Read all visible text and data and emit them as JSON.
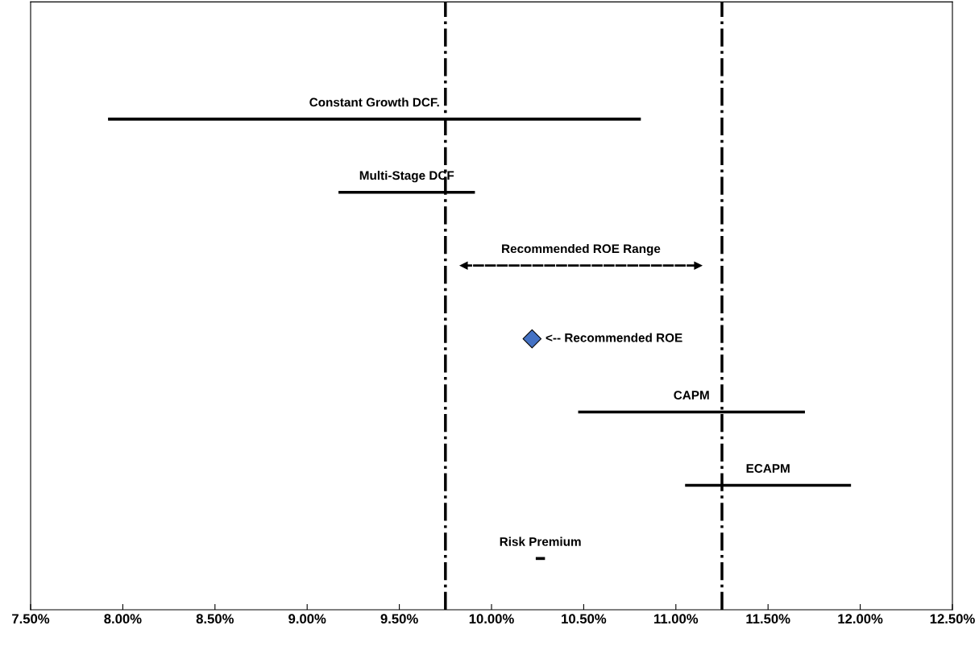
{
  "chart_data": {
    "type": "bar",
    "orientation": "horizontal",
    "tick_labels": "x",
    "categories": [
      "Constant Growth DCF.",
      "Multi-Stage DCF",
      "Recommended ROE Range",
      "<-- Recommended ROE",
      "CAPM",
      "ECAPM",
      "Risk Premium"
    ],
    "series": [
      {
        "color": "#000000",
        "base": [
          7.92,
          9.17,
          null,
          null,
          10.47,
          11.05,
          10.24
        ],
        "values": [
          2.89,
          0.74,
          null,
          null,
          1.23,
          0.9,
          0.05
        ]
      },
      {
        "color": "#000000",
        "line_style": "dashed",
        "base": [
          null,
          null,
          9.85,
          null,
          null,
          null,
          null
        ],
        "values": [
          null,
          null,
          1.27,
          null,
          null,
          null,
          null
        ]
      },
      {
        "type": "scatter",
        "color": "#4472c4",
        "marker": "diamond",
        "values": [
          null,
          null,
          null,
          10.22,
          null,
          null,
          null
        ]
      }
    ],
    "xlim": [
      7.5,
      12.5
    ],
    "xticks": [
      {
        "value": 7.5,
        "label": "7.50%"
      },
      {
        "value": 8.0,
        "label": "8.00%"
      },
      {
        "value": 8.5,
        "label": "8.50%"
      },
      {
        "value": 9.0,
        "label": "9.00%"
      },
      {
        "value": 9.5,
        "label": "9.50%"
      },
      {
        "value": 10.0,
        "label": "10.00%"
      },
      {
        "value": 10.5,
        "label": "10.50%"
      },
      {
        "value": 11.0,
        "label": "11.00%"
      },
      {
        "value": 11.5,
        "label": "11.50%"
      },
      {
        "value": 12.0,
        "label": "12.00%"
      },
      {
        "value": 12.5,
        "label": "12.50%"
      }
    ],
    "ref_lines": [
      {
        "axis": "x",
        "value": 9.75,
        "color": "#000000",
        "line_style": "dashdot"
      },
      {
        "axis": "x",
        "value": 11.25,
        "color": "#000000",
        "line_style": "dashdot"
      }
    ],
    "grid": false,
    "legend": false
  }
}
